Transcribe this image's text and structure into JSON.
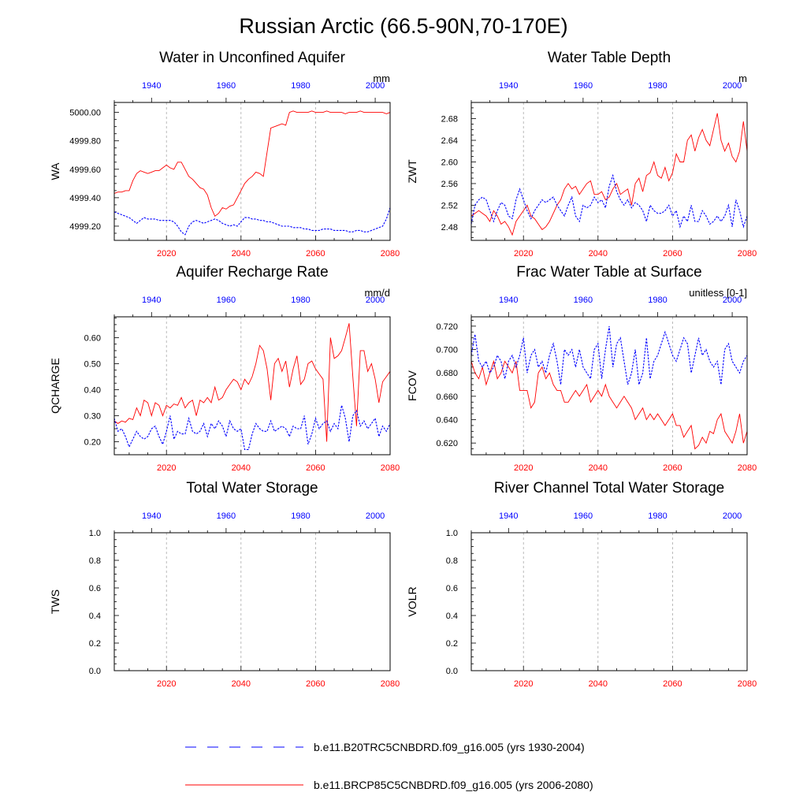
{
  "figure": {
    "title": "Russian Arctic (66.5-90N,70-170E)",
    "legend": [
      {
        "label": "b.e11.B20TRC5CNBDRD.f09_g16.005 (yrs 1930-2004)",
        "color": "#0000ff",
        "style": "dashed"
      },
      {
        "label": "b.e11.BRCP85C5CNBDRD.f09_g16.005 (yrs 2006-2080)",
        "color": "#ff0000",
        "style": "solid"
      }
    ],
    "colors": {
      "historical": "#0000ff",
      "future": "#ff0000",
      "grid": "#aaaaaa"
    }
  },
  "chart_data": [
    {
      "type": "line",
      "title": "Water in Unconfined Aquifer",
      "ylabel": "WA",
      "units": "mm",
      "ylim": [
        4999.1,
        5000.07
      ],
      "yticks": [
        4999.2,
        4999.4,
        4999.6,
        4999.8,
        5000.0
      ],
      "ytick_labels": [
        "4999.20",
        "4999.40",
        "4999.60",
        "4999.80",
        "5000.00"
      ],
      "bottom_xlim": [
        2006,
        2080
      ],
      "bottom_xticks": [
        2020,
        2040,
        2060,
        2080
      ],
      "top_xlim": [
        1930,
        2004
      ],
      "top_xticks": [
        1940,
        1960,
        1980,
        2000
      ],
      "series": [
        {
          "name": "b.e11.BRCP85C5CNBDRD.f09_g16.005 (yrs 2006-2080)",
          "axis": "bottom",
          "x0": 2006,
          "values": [
            4999.43,
            4999.44,
            4999.44,
            4999.45,
            4999.45,
            4999.52,
            4999.57,
            4999.59,
            4999.58,
            4999.57,
            4999.58,
            4999.59,
            4999.59,
            4999.61,
            4999.63,
            4999.61,
            4999.6,
            4999.65,
            4999.65,
            4999.6,
            4999.55,
            4999.53,
            4999.5,
            4999.47,
            4999.46,
            4999.42,
            4999.33,
            4999.27,
            4999.29,
            4999.33,
            4999.32,
            4999.34,
            4999.35,
            4999.4,
            4999.45,
            4999.5,
            4999.53,
            4999.55,
            4999.58,
            4999.57,
            4999.55,
            4999.72,
            4999.89,
            4999.9,
            4999.91,
            4999.92,
            4999.91,
            5000.0,
            5000.01,
            5000.0,
            5000.0,
            5000.0,
            5000.0,
            5000.01,
            5000.0,
            5000.0,
            5000.0,
            5000.01,
            5000.0,
            5000.0,
            5000.0,
            5000.0,
            4999.99,
            5000.0,
            5000.0,
            5000.0,
            5000.01,
            5000.0,
            5000.0,
            5000.0,
            5000.0,
            5000.0,
            5000.0,
            4999.99,
            5000.0
          ]
        },
        {
          "name": "b.e11.B20TRC5CNBDRD.f09_g16.005 (yrs 1930-2004)",
          "axis": "top",
          "x0": 1930,
          "values": [
            4999.3,
            4999.29,
            4999.28,
            4999.27,
            4999.26,
            4999.24,
            4999.22,
            4999.24,
            4999.26,
            4999.25,
            4999.25,
            4999.25,
            4999.24,
            4999.24,
            4999.24,
            4999.24,
            4999.23,
            4999.2,
            4999.16,
            4999.14,
            4999.2,
            4999.23,
            4999.24,
            4999.23,
            4999.22,
            4999.23,
            4999.24,
            4999.25,
            4999.24,
            4999.22,
            4999.21,
            4999.2,
            4999.21,
            4999.2,
            4999.23,
            4999.26,
            4999.26,
            4999.25,
            4999.25,
            4999.24,
            4999.24,
            4999.23,
            4999.23,
            4999.22,
            4999.21,
            4999.2,
            4999.2,
            4999.2,
            4999.19,
            4999.19,
            4999.19,
            4999.18,
            4999.18,
            4999.17,
            4999.17,
            4999.17,
            4999.18,
            4999.18,
            4999.18,
            4999.17,
            4999.17,
            4999.17,
            4999.17,
            4999.16,
            4999.16,
            4999.17,
            4999.17,
            4999.16,
            4999.16,
            4999.17,
            4999.18,
            4999.19,
            4999.2,
            4999.25,
            4999.33
          ]
        }
      ]
    },
    {
      "type": "line",
      "title": "Water Table Depth",
      "ylabel": "ZWT",
      "units": "m",
      "ylim": [
        2.455,
        2.71
      ],
      "yticks": [
        2.48,
        2.52,
        2.56,
        2.6,
        2.64,
        2.68
      ],
      "ytick_labels": [
        "2.48",
        "2.52",
        "2.56",
        "2.60",
        "2.64",
        "2.68"
      ],
      "bottom_xlim": [
        2006,
        2080
      ],
      "bottom_xticks": [
        2020,
        2040,
        2060,
        2080
      ],
      "top_xlim": [
        1930,
        2004
      ],
      "top_xticks": [
        1940,
        1960,
        1980,
        2000
      ],
      "series": [
        {
          "name": "b.e11.BRCP85C5CNBDRD.f09_g16.005 (yrs 2006-2080)",
          "axis": "bottom",
          "x0": 2006,
          "values": [
            2.5,
            2.505,
            2.51,
            2.505,
            2.5,
            2.49,
            2.51,
            2.5,
            2.485,
            2.49,
            2.48,
            2.465,
            2.49,
            2.5,
            2.51,
            2.52,
            2.5,
            2.495,
            2.485,
            2.475,
            2.48,
            2.49,
            2.505,
            2.52,
            2.53,
            2.55,
            2.56,
            2.55,
            2.555,
            2.54,
            2.55,
            2.56,
            2.565,
            2.54,
            2.54,
            2.545,
            2.53,
            2.535,
            2.55,
            2.56,
            2.54,
            2.545,
            2.55,
            2.52,
            2.56,
            2.57,
            2.545,
            2.575,
            2.58,
            2.6,
            2.575,
            2.57,
            2.59,
            2.565,
            2.58,
            2.615,
            2.6,
            2.6,
            2.64,
            2.65,
            2.62,
            2.645,
            2.66,
            2.64,
            2.63,
            2.66,
            2.69,
            2.64,
            2.62,
            2.635,
            2.61,
            2.6,
            2.62,
            2.675,
            2.62
          ]
        },
        {
          "name": "b.e11.B20TRC5CNBDRD.f09_g16.005 (yrs 1930-2004)",
          "axis": "top",
          "x0": 1930,
          "values": [
            2.485,
            2.52,
            2.53,
            2.535,
            2.53,
            2.51,
            2.49,
            2.51,
            2.525,
            2.52,
            2.5,
            2.495,
            2.53,
            2.55,
            2.53,
            2.51,
            2.495,
            2.51,
            2.52,
            2.53,
            2.525,
            2.53,
            2.535,
            2.52,
            2.51,
            2.5,
            2.52,
            2.535,
            2.5,
            2.49,
            2.52,
            2.515,
            2.52,
            2.535,
            2.525,
            2.53,
            2.515,
            2.555,
            2.575,
            2.545,
            2.53,
            2.52,
            2.53,
            2.515,
            2.525,
            2.52,
            2.51,
            2.49,
            2.52,
            2.51,
            2.505,
            2.505,
            2.51,
            2.52,
            2.5,
            2.51,
            2.48,
            2.5,
            2.49,
            2.52,
            2.49,
            2.49,
            2.51,
            2.5,
            2.485,
            2.49,
            2.5,
            2.49,
            2.5,
            2.52,
            2.48,
            2.53,
            2.51,
            2.48,
            2.5
          ]
        }
      ]
    },
    {
      "type": "line",
      "title": "Aquifer Recharge Rate",
      "ylabel": "QCHARGE",
      "units": "mm/d",
      "ylim": [
        0.15,
        0.68
      ],
      "yticks": [
        0.2,
        0.3,
        0.4,
        0.5,
        0.6
      ],
      "ytick_labels": [
        "0.20",
        "0.30",
        "0.40",
        "0.50",
        "0.60"
      ],
      "bottom_xlim": [
        2006,
        2080
      ],
      "bottom_xticks": [
        2020,
        2040,
        2060,
        2080
      ],
      "top_xlim": [
        1930,
        2004
      ],
      "top_xticks": [
        1940,
        1960,
        1980,
        2000
      ],
      "series": [
        {
          "name": "b.e11.BRCP85C5CNBDRD.f09_g16.005 (yrs 2006-2080)",
          "axis": "bottom",
          "x0": 2006,
          "values": [
            0.28,
            0.27,
            0.28,
            0.275,
            0.29,
            0.285,
            0.33,
            0.3,
            0.36,
            0.35,
            0.3,
            0.35,
            0.34,
            0.3,
            0.34,
            0.33,
            0.345,
            0.34,
            0.37,
            0.33,
            0.35,
            0.36,
            0.3,
            0.36,
            0.35,
            0.37,
            0.35,
            0.41,
            0.36,
            0.37,
            0.4,
            0.42,
            0.44,
            0.43,
            0.4,
            0.44,
            0.42,
            0.45,
            0.5,
            0.57,
            0.55,
            0.48,
            0.36,
            0.5,
            0.52,
            0.47,
            0.51,
            0.41,
            0.48,
            0.53,
            0.42,
            0.44,
            0.5,
            0.51,
            0.48,
            0.46,
            0.44,
            0.2,
            0.6,
            0.52,
            0.53,
            0.55,
            0.6,
            0.655,
            0.45,
            0.26,
            0.55,
            0.55,
            0.47,
            0.5,
            0.44,
            0.35,
            0.43,
            0.45,
            0.47
          ]
        },
        {
          "name": "b.e11.B20TRC5CNBDRD.f09_g16.005 (yrs 1930-2004)",
          "axis": "top",
          "x0": 1930,
          "values": [
            0.29,
            0.24,
            0.25,
            0.22,
            0.18,
            0.21,
            0.24,
            0.22,
            0.21,
            0.22,
            0.25,
            0.26,
            0.22,
            0.19,
            0.24,
            0.3,
            0.21,
            0.24,
            0.23,
            0.23,
            0.29,
            0.24,
            0.23,
            0.24,
            0.27,
            0.22,
            0.27,
            0.25,
            0.28,
            0.26,
            0.22,
            0.28,
            0.25,
            0.24,
            0.25,
            0.17,
            0.17,
            0.23,
            0.27,
            0.25,
            0.24,
            0.24,
            0.28,
            0.24,
            0.25,
            0.26,
            0.25,
            0.22,
            0.26,
            0.25,
            0.25,
            0.3,
            0.19,
            0.23,
            0.29,
            0.25,
            0.27,
            0.28,
            0.24,
            0.27,
            0.25,
            0.34,
            0.29,
            0.2,
            0.3,
            0.32,
            0.26,
            0.28,
            0.25,
            0.27,
            0.29,
            0.22,
            0.26,
            0.24,
            0.27
          ]
        }
      ]
    },
    {
      "type": "line",
      "title": "Frac Water Table at Surface",
      "ylabel": "FCOV",
      "units": "unitless [0-1]",
      "ylim": [
        0.61,
        0.728
      ],
      "yticks": [
        0.62,
        0.64,
        0.66,
        0.68,
        0.7,
        0.72
      ],
      "ytick_labels": [
        "0.620",
        "0.640",
        "0.660",
        "0.680",
        "0.700",
        "0.720"
      ],
      "bottom_xlim": [
        2006,
        2080
      ],
      "bottom_xticks": [
        2020,
        2040,
        2060,
        2080
      ],
      "top_xlim": [
        1930,
        2004
      ],
      "top_xticks": [
        1940,
        1960,
        1980,
        2000
      ],
      "series": [
        {
          "name": "b.e11.BRCP85C5CNBDRD.f09_g16.005 (yrs 2006-2080)",
          "axis": "bottom",
          "x0": 2006,
          "values": [
            0.69,
            0.68,
            0.675,
            0.685,
            0.67,
            0.68,
            0.69,
            0.675,
            0.68,
            0.69,
            0.685,
            0.68,
            0.69,
            0.665,
            0.665,
            0.665,
            0.65,
            0.655,
            0.68,
            0.685,
            0.675,
            0.68,
            0.67,
            0.665,
            0.665,
            0.655,
            0.655,
            0.66,
            0.665,
            0.66,
            0.665,
            0.67,
            0.655,
            0.66,
            0.665,
            0.66,
            0.67,
            0.66,
            0.655,
            0.65,
            0.655,
            0.66,
            0.655,
            0.65,
            0.64,
            0.645,
            0.65,
            0.64,
            0.645,
            0.64,
            0.645,
            0.64,
            0.635,
            0.64,
            0.645,
            0.635,
            0.635,
            0.625,
            0.63,
            0.635,
            0.615,
            0.618,
            0.625,
            0.62,
            0.63,
            0.628,
            0.64,
            0.645,
            0.63,
            0.625,
            0.62,
            0.63,
            0.645,
            0.62,
            0.63
          ]
        },
        {
          "name": "b.e11.B20TRC5CNBDRD.f09_g16.005 (yrs 1930-2004)",
          "axis": "top",
          "x0": 1930,
          "values": [
            0.695,
            0.713,
            0.69,
            0.685,
            0.69,
            0.68,
            0.685,
            0.695,
            0.69,
            0.675,
            0.69,
            0.695,
            0.685,
            0.695,
            0.71,
            0.68,
            0.695,
            0.7,
            0.685,
            0.69,
            0.68,
            0.695,
            0.705,
            0.69,
            0.67,
            0.7,
            0.695,
            0.7,
            0.685,
            0.7,
            0.685,
            0.68,
            0.675,
            0.7,
            0.705,
            0.675,
            0.7,
            0.72,
            0.685,
            0.705,
            0.71,
            0.69,
            0.67,
            0.68,
            0.7,
            0.67,
            0.68,
            0.71,
            0.675,
            0.69,
            0.695,
            0.705,
            0.715,
            0.705,
            0.695,
            0.69,
            0.7,
            0.71,
            0.705,
            0.68,
            0.695,
            0.71,
            0.695,
            0.7,
            0.69,
            0.685,
            0.69,
            0.67,
            0.7,
            0.705,
            0.69,
            0.685,
            0.68,
            0.69,
            0.695
          ]
        }
      ]
    },
    {
      "type": "line",
      "title": "Total Water Storage",
      "ylabel": "TWS",
      "units": "",
      "ylim": [
        0,
        1
      ],
      "yticks": [
        0,
        0.2,
        0.4,
        0.6,
        0.8,
        1.0
      ],
      "ytick_labels": [
        "0.0",
        "0.2",
        "0.4",
        "0.6",
        "0.8",
        "1.0"
      ],
      "bottom_xlim": [
        2006,
        2080
      ],
      "bottom_xticks": [
        2020,
        2040,
        2060,
        2080
      ],
      "top_xlim": [
        1930,
        2004
      ],
      "top_xticks": [
        1940,
        1960,
        1980,
        2000
      ],
      "series": []
    },
    {
      "type": "line",
      "title": "River Channel Total Water Storage",
      "ylabel": "VOLR",
      "units": "",
      "ylim": [
        0,
        1
      ],
      "yticks": [
        0,
        0.2,
        0.4,
        0.6,
        0.8,
        1.0
      ],
      "ytick_labels": [
        "0.0",
        "0.2",
        "0.4",
        "0.6",
        "0.8",
        "1.0"
      ],
      "bottom_xlim": [
        2006,
        2080
      ],
      "bottom_xticks": [
        2020,
        2040,
        2060,
        2080
      ],
      "top_xlim": [
        1930,
        2004
      ],
      "top_xticks": [
        1940,
        1960,
        1980,
        2000
      ],
      "series": []
    }
  ]
}
